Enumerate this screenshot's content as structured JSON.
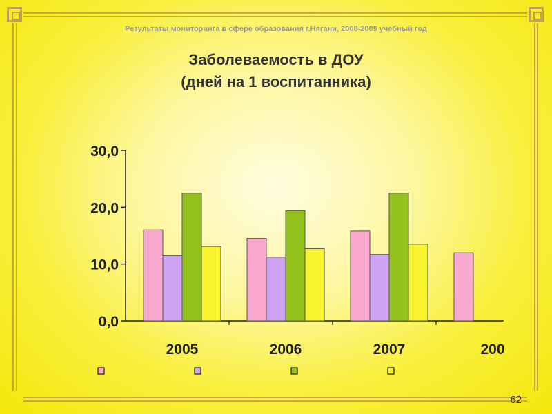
{
  "header": {
    "subtitle": "Результаты мониторинга в сфере образования г.Нягани, 2008-2009 учебный год"
  },
  "title": {
    "line1": "Заболеваемость в ДОУ",
    "line2": "(дней на 1 воспитанника)"
  },
  "page_number": "62",
  "colors": {
    "background": "#f7ee16",
    "frame": "#c9a64a"
  },
  "chart_data": {
    "type": "bar",
    "categories": [
      "2005",
      "2006",
      "2007",
      "200"
    ],
    "ylim": [
      0,
      30
    ],
    "y_ticks": [
      "0,0",
      "10,0",
      "20,0",
      "30,0"
    ],
    "grid": false,
    "legend_position": "bottom",
    "series": [
      {
        "color": "#f9a8cf",
        "values": [
          16.0,
          14.5,
          15.8,
          12.0
        ]
      },
      {
        "color": "#cfa4f4",
        "values": [
          11.5,
          11.2,
          11.7,
          null
        ]
      },
      {
        "color": "#93c11e",
        "values": [
          22.5,
          19.4,
          22.5,
          null
        ]
      },
      {
        "color": "#f8f430",
        "values": [
          13.1,
          12.7,
          13.5,
          null
        ]
      }
    ]
  }
}
